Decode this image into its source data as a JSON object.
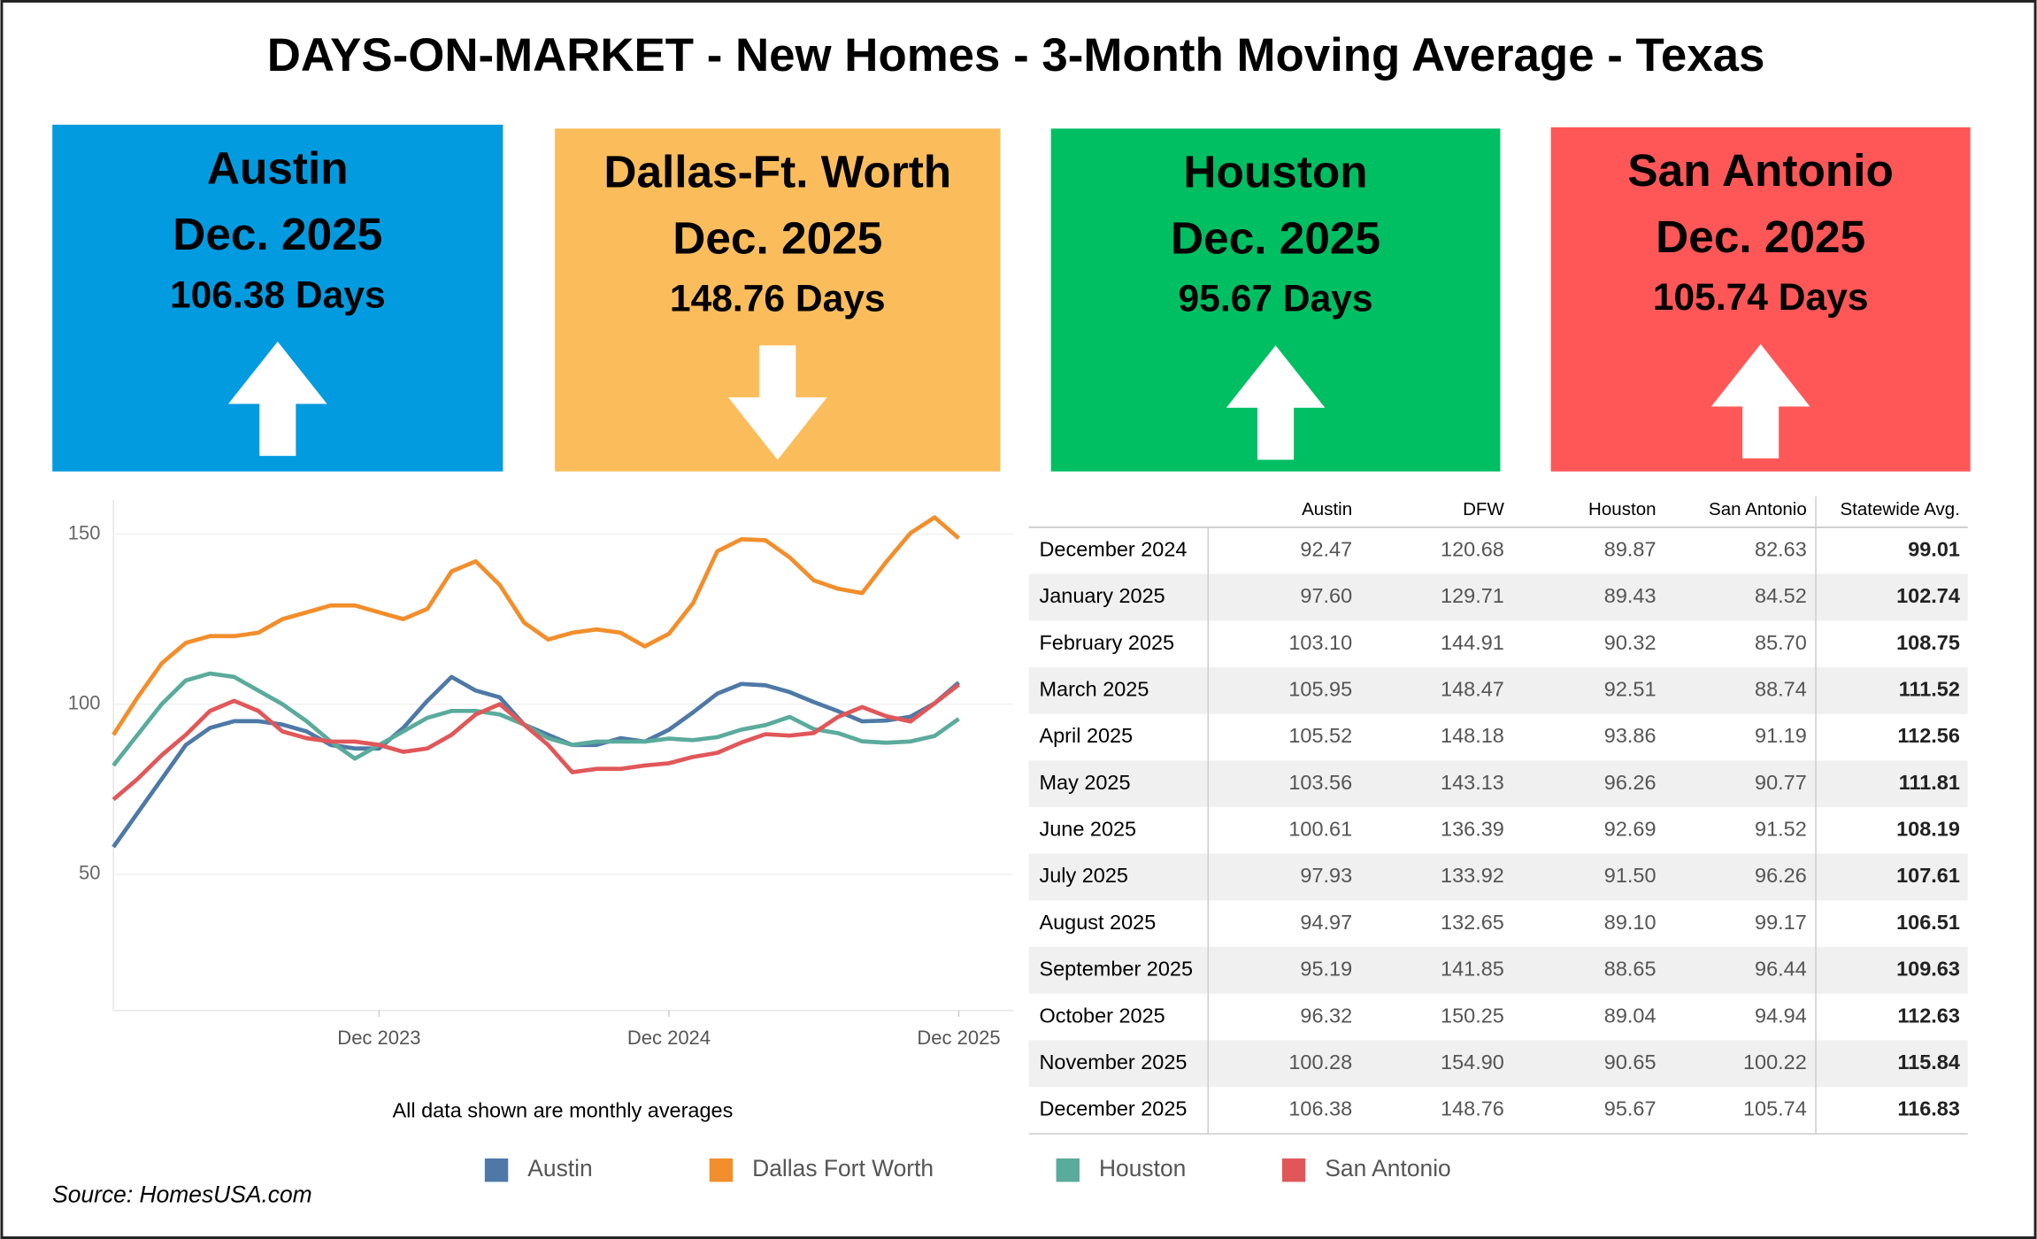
{
  "title": "DAYS-ON-MARKET - New Homes - 3-Month Moving Average - Texas",
  "cards": [
    {
      "city": "Austin",
      "date": "Dec. 2025",
      "days": "106.38 Days",
      "direction": "up",
      "color": "#039be0"
    },
    {
      "city": "Dallas-Ft. Worth",
      "date": "Dec. 2025",
      "days": "148.76 Days",
      "direction": "down",
      "color": "#fbbd5b"
    },
    {
      "city": "Houston",
      "date": "Dec. 2025",
      "days": "95.67 Days",
      "direction": "up",
      "color": "#00bf63"
    },
    {
      "city": "San Antonio",
      "date": "Dec. 2025",
      "days": "105.74 Days",
      "direction": "up",
      "color": "#ff5757"
    }
  ],
  "chart_data": {
    "type": "line",
    "categories": [
      null,
      null,
      null,
      null,
      null,
      null,
      null,
      null,
      null,
      null,
      null,
      "Dec 2023",
      null,
      null,
      null,
      null,
      null,
      null,
      null,
      null,
      null,
      null,
      null,
      "Dec 2024",
      null,
      null,
      null,
      null,
      null,
      null,
      null,
      null,
      null,
      null,
      null,
      "Dec 2025"
    ],
    "series": [
      {
        "name": "Austin",
        "color": "#4e79a7",
        "values": [
          58,
          68,
          78,
          88,
          93,
          95,
          95,
          94,
          92,
          88,
          87,
          87,
          93,
          101,
          108,
          104,
          102,
          94,
          91,
          88,
          88,
          90,
          89,
          92.47,
          97.6,
          103.1,
          105.95,
          105.52,
          103.56,
          100.61,
          97.93,
          94.97,
          95.19,
          96.32,
          100.28,
          106.38
        ]
      },
      {
        "name": "Dallas Fort Worth",
        "color": "#f28e2b",
        "values": [
          91,
          102,
          112,
          118,
          120,
          120,
          121,
          125,
          127,
          129,
          129,
          127,
          125,
          128,
          139,
          142,
          135,
          124,
          119,
          121,
          122,
          121,
          117,
          120.68,
          129.71,
          144.91,
          148.47,
          148.18,
          143.13,
          136.39,
          133.92,
          132.65,
          141.85,
          150.25,
          154.9,
          148.76
        ]
      },
      {
        "name": "Houston",
        "color": "#5aab9b",
        "values": [
          82,
          91,
          100,
          107,
          109,
          108,
          104,
          100,
          95,
          89,
          84,
          88,
          92,
          96,
          98,
          98,
          97,
          94,
          90,
          88,
          89,
          89,
          89,
          89.87,
          89.43,
          90.32,
          92.51,
          93.86,
          96.26,
          92.69,
          91.5,
          89.1,
          88.65,
          89.04,
          90.65,
          95.67
        ]
      },
      {
        "name": "San Antonio",
        "color": "#e15759",
        "values": [
          72,
          78,
          85,
          91,
          98,
          101,
          98,
          92,
          90,
          89,
          89,
          88,
          86,
          87,
          91,
          97,
          100,
          94,
          88,
          80,
          81,
          81,
          82,
          82.63,
          84.52,
          85.7,
          88.74,
          91.19,
          90.77,
          91.52,
          96.26,
          99.17,
          96.44,
          94.94,
          100.22,
          105.74
        ]
      }
    ],
    "ylim": [
      10,
      160
    ],
    "yticks": [
      50,
      100,
      150
    ],
    "grid": true,
    "note": "All data shown are monthly averages"
  },
  "table": {
    "header": [
      "Austin",
      "DFW",
      "Houston",
      "San Antonio",
      "Statewide Avg."
    ],
    "rows": [
      [
        "December 2024",
        "92.47",
        "120.68",
        "89.87",
        "82.63",
        "99.01"
      ],
      [
        "January 2025",
        "97.60",
        "129.71",
        "89.43",
        "84.52",
        "102.74"
      ],
      [
        "February 2025",
        "103.10",
        "144.91",
        "90.32",
        "85.70",
        "108.75"
      ],
      [
        "March 2025",
        "105.95",
        "148.47",
        "92.51",
        "88.74",
        "111.52"
      ],
      [
        "April 2025",
        "105.52",
        "148.18",
        "93.86",
        "91.19",
        "112.56"
      ],
      [
        "May 2025",
        "103.56",
        "143.13",
        "96.26",
        "90.77",
        "111.81"
      ],
      [
        "June 2025",
        "100.61",
        "136.39",
        "92.69",
        "91.52",
        "108.19"
      ],
      [
        "July 2025",
        "97.93",
        "133.92",
        "91.50",
        "96.26",
        "107.61"
      ],
      [
        "August 2025",
        "94.97",
        "132.65",
        "89.10",
        "99.17",
        "106.51"
      ],
      [
        "September 2025",
        "95.19",
        "141.85",
        "88.65",
        "96.44",
        "109.63"
      ],
      [
        "October 2025",
        "96.32",
        "150.25",
        "89.04",
        "94.94",
        "112.63"
      ],
      [
        "November 2025",
        "100.28",
        "154.90",
        "90.65",
        "100.22",
        "115.84"
      ],
      [
        "December 2025",
        "106.38",
        "148.76",
        "95.67",
        "105.74",
        "116.83"
      ]
    ]
  },
  "source": "Source: HomesUSA.com"
}
